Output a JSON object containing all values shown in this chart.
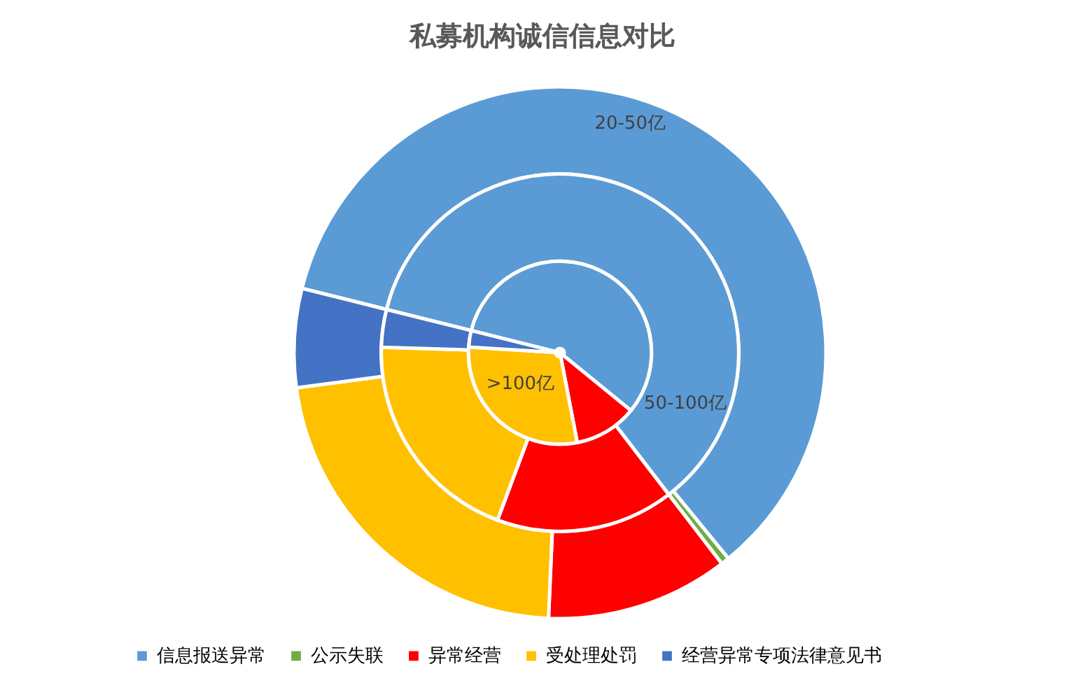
{
  "chart_data": {
    "type": "donut",
    "title": "私募机构诚信信息对比",
    "categories": [
      "信息报送异常",
      "公示失联",
      "异常经营",
      "受处理处罚",
      "经营异常专项法律意见书"
    ],
    "colors": [
      "#5b9bd5",
      "#70ad47",
      "#ff0000",
      "#ffc000",
      "#4472c4"
    ],
    "series": [
      {
        "name": "20-50亿",
        "values": [
          60.2,
          0.5,
          11.1,
          22.2,
          6.0
        ]
      },
      {
        "name": "50-100亿",
        "values": [
          60.7,
          null,
          16.1,
          19.8,
          3.4
        ]
      },
      {
        "name": ">100亿",
        "values": [
          57.0,
          null,
          11.1,
          29.0,
          2.9
        ]
      }
    ],
    "legend": "bottom"
  }
}
